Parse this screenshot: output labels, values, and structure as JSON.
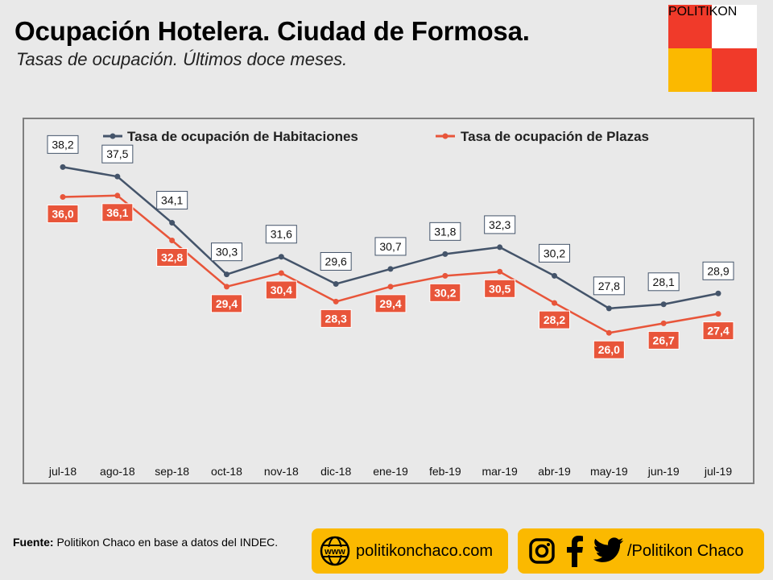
{
  "header": {
    "title": "Ocupación Hotelera. Ciudad de Formosa.",
    "subtitle": "Tasas de ocupación. Últimos doce meses."
  },
  "logo": {
    "label": "POLITIKON",
    "colors": [
      "#f03a2a",
      "#ffffff",
      "#fbb900",
      "#f03a2a"
    ]
  },
  "chart_data": {
    "type": "line",
    "categories": [
      "jul-18",
      "ago-18",
      "sep-18",
      "oct-18",
      "nov-18",
      "dic-18",
      "ene-19",
      "feb-19",
      "mar-19",
      "abr-19",
      "may-19",
      "jun-19",
      "jul-19"
    ],
    "series": [
      {
        "name": "Tasa de ocupación de Habitaciones",
        "color": "#44546a",
        "values": [
          38.2,
          37.5,
          34.1,
          30.3,
          31.6,
          29.6,
          30.7,
          31.8,
          32.3,
          30.2,
          27.8,
          28.1,
          28.9
        ],
        "labels": [
          "38,2",
          "37,5",
          "34,1",
          "30,3",
          "31,6",
          "29,6",
          "30,7",
          "31,8",
          "32,3",
          "30,2",
          "27,8",
          "28,1",
          "28,9"
        ]
      },
      {
        "name": "Tasa de ocupación de Plazas",
        "color": "#e8553a",
        "values": [
          36.0,
          36.1,
          32.8,
          29.4,
          30.4,
          28.3,
          29.4,
          30.2,
          30.5,
          28.2,
          26.0,
          26.7,
          27.4
        ],
        "labels": [
          "36,0",
          "36,1",
          "32,8",
          "29,4",
          "30,4",
          "28,3",
          "29,4",
          "30,2",
          "30,5",
          "28,2",
          "26,0",
          "26,7",
          "27,4"
        ]
      }
    ],
    "legend": "top",
    "grid": false,
    "ylim": [
      17.3,
      41.6
    ]
  },
  "footer": {
    "source_label": "Fuente:",
    "source_text": " Politikon Chaco en base a datos del INDEC.",
    "web_icon_text": "www",
    "web": "politikonchaco.com",
    "social": "/Politikon Chaco",
    "pill_color": "#fbb900"
  }
}
